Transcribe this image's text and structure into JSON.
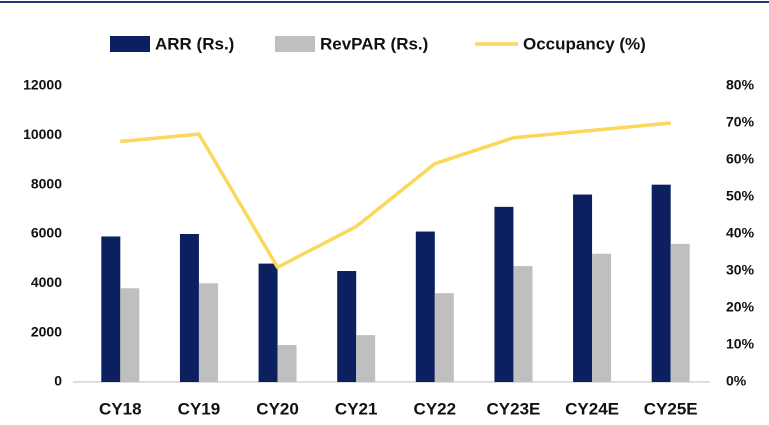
{
  "chart_data": {
    "type": "bar-line",
    "categories": [
      "CY18",
      "CY19",
      "CY20",
      "CY21",
      "CY22",
      "CY23E",
      "CY24E",
      "CY25E"
    ],
    "series": [
      {
        "name": "ARR (Rs.)",
        "color": "#0c1f5e",
        "type": "bar",
        "values": [
          5900,
          6000,
          4800,
          4500,
          6100,
          7100,
          7600,
          8000
        ]
      },
      {
        "name": "RevPAR (Rs.)",
        "color": "#bfbfbf",
        "type": "bar",
        "values": [
          3800,
          4000,
          1500,
          1900,
          3600,
          4700,
          5200,
          5600
        ]
      },
      {
        "name": "Occupancy (%)",
        "color": "#fbd75c",
        "type": "line",
        "axis": "y2",
        "values": [
          65,
          67,
          31,
          42,
          59,
          66,
          68,
          70
        ]
      }
    ],
    "ylim": [
      0,
      12000
    ],
    "yticks": [
      0,
      2000,
      4000,
      6000,
      8000,
      10000,
      12000
    ],
    "y2lim": [
      0,
      80
    ],
    "y2ticks": [
      {
        "value": 0,
        "label": "0%"
      },
      {
        "value": 10,
        "label": "10%"
      },
      {
        "value": 20,
        "label": "20%"
      },
      {
        "value": 30,
        "label": "30%"
      },
      {
        "value": 40,
        "label": "40%"
      },
      {
        "value": 50,
        "label": "50%"
      },
      {
        "value": 60,
        "label": "60%"
      },
      {
        "value": 70,
        "label": "70%"
      },
      {
        "value": 80,
        "label": "80%"
      }
    ],
    "legend": "top",
    "grid": false
  }
}
